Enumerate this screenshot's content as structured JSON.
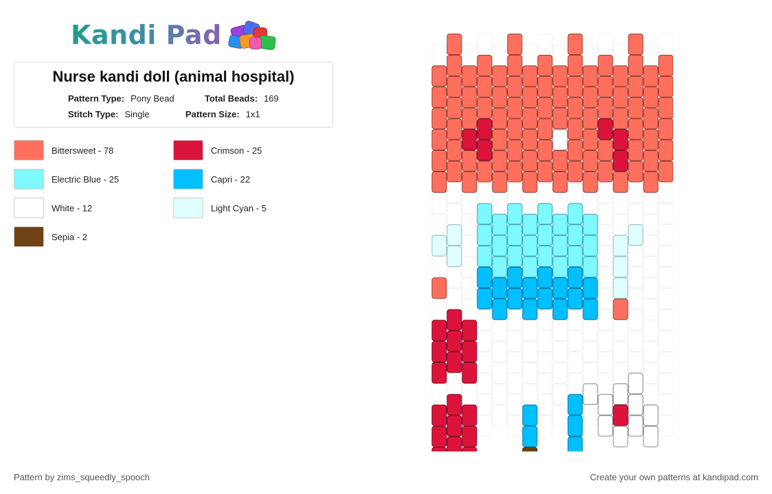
{
  "logo": {
    "text": "Kandi Pad",
    "icon": "bead-pile-icon"
  },
  "title": "Nurse kandi doll (animal hospital)",
  "meta": {
    "pattern_type_label": "Pattern Type:",
    "pattern_type": "Pony Bead",
    "total_beads_label": "Total Beads:",
    "total_beads": "169",
    "stitch_type_label": "Stitch Type:",
    "stitch_type": "Single",
    "pattern_size_label": "Pattern Size:",
    "pattern_size": "1x1"
  },
  "legend": [
    {
      "label": "Bittersweet - 78",
      "color": "#FF6F5E"
    },
    {
      "label": "Crimson - 25",
      "color": "#DC143C"
    },
    {
      "label": "Electric Blue - 25",
      "color": "#7DF9FF"
    },
    {
      "label": "Capri - 22",
      "color": "#00BFFF"
    },
    {
      "label": "White - 12",
      "color": "#FFFFFF"
    },
    {
      "label": "Light Cyan - 5",
      "color": "#E0FFFF"
    },
    {
      "label": "Sepia - 2",
      "color": "#704214"
    }
  ],
  "footer": {
    "left": "Pattern by zims_squeedly_spooch",
    "right": "Create your own patterns at kandipad.com"
  }
}
